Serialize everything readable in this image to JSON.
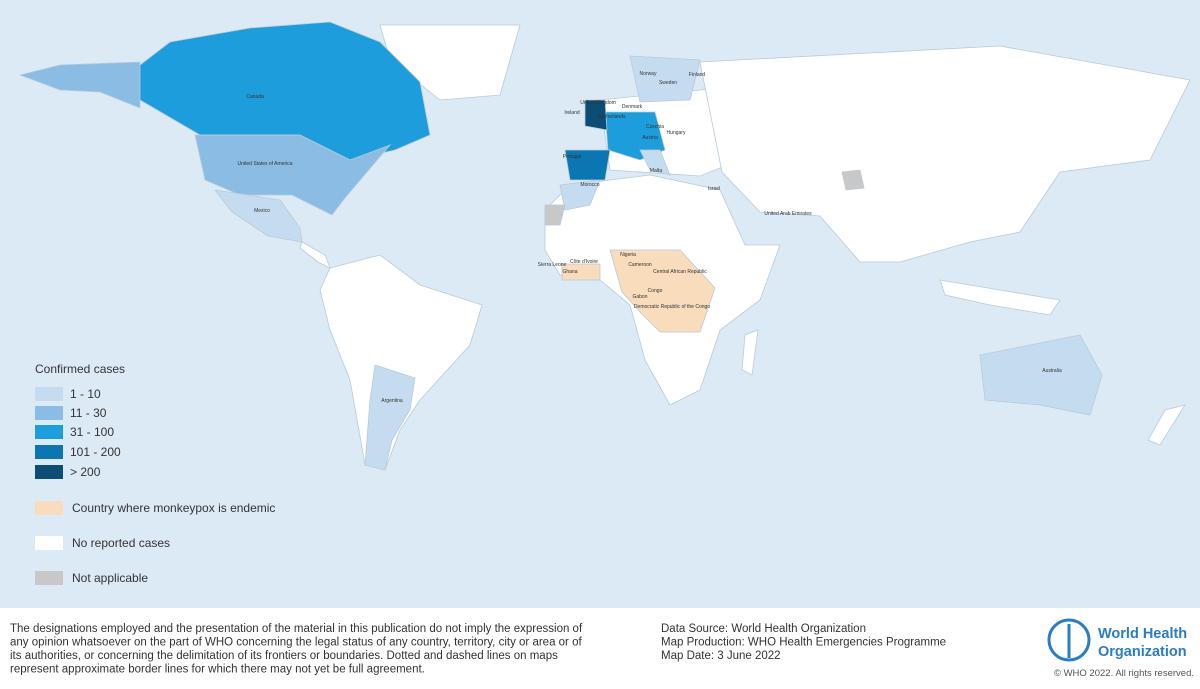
{
  "legend": {
    "title": "Confirmed cases",
    "items": [
      {
        "label": "1 - 10",
        "color": "#c5dcf0"
      },
      {
        "label": "11 - 30",
        "color": "#8bbde4"
      },
      {
        "label": "31 - 100",
        "color": "#1e9ddc"
      },
      {
        "label": "101 - 200",
        "color": "#0a77b3"
      },
      {
        "label": "> 200",
        "color": "#0b4d75"
      },
      {
        "label": "Country where monkeypox is endemic",
        "color": "#f9dcbb"
      },
      {
        "label": "No reported cases",
        "color": "#ffffff"
      },
      {
        "label": "Not applicable",
        "color": "#c8c8c8"
      }
    ]
  },
  "countries": [
    "Canada",
    "United States of America",
    "Mexico",
    "Argentina",
    "Australia",
    "United Kingdom",
    "Ireland",
    "Netherlands",
    "Denmark",
    "Norway",
    "Sweden",
    "Finland",
    "Czechia",
    "Hungary",
    "Austria",
    "Portugal",
    "Morocco",
    "Malta",
    "Israel",
    "United Arab Emirates",
    "Nigeria",
    "Cameroon",
    "Central African Republic",
    "Congo",
    "Gabon",
    "Democratic Republic of the Congo",
    "Sierra Leone",
    "Côte d'Ivoire",
    "Ghana"
  ],
  "footer": {
    "disclaimer": [
      "The designations employed and the presentation of the material in this publication do not imply the expression of",
      "any opinion whatsoever on the part of WHO concerning the legal status of any country, territory, city or area or of",
      "its authorities, or concerning the delimitation of its frontiers or boundaries. Dotted and dashed lines on maps",
      "represent approximate border lines for which there may not yet be full agreement."
    ],
    "source": [
      "Data Source: World Health Organization",
      "Map Production: WHO Health Emergencies Programme",
      "Map Date: 3 June 2022"
    ],
    "logo": [
      "World Health",
      "Organization"
    ],
    "copyright": "© WHO 2022. All rights reserved."
  }
}
